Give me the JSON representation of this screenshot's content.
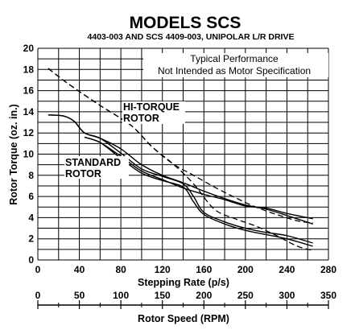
{
  "chart_data": {
    "type": "line",
    "title": "MODELS SCS",
    "subtitle": "4403-003 AND SCS 4409-003, UNIPOLAR L/R DRIVE",
    "xlabel": "Stepping Rate (p/s)",
    "ylabel": "Rotor Torque (oz. in.)",
    "x2label": "Rotor Speed (RPM)",
    "xlim": [
      0,
      280
    ],
    "ylim": [
      0,
      20
    ],
    "x2lim": [
      0,
      350
    ],
    "xticks": [
      "0",
      "40",
      "80",
      "120",
      "160",
      "200",
      "240",
      "280"
    ],
    "yticks": [
      "0",
      "2",
      "4",
      "6",
      "8",
      "10",
      "12",
      "14",
      "16",
      "18",
      "20"
    ],
    "x2ticks": [
      "0",
      "50",
      "100",
      "150",
      "200",
      "250",
      "300",
      "350"
    ],
    "grid": true,
    "annotations": {
      "note_line1": "Typical Performance",
      "note_line2": "Not Intended as Motor Specification",
      "hi_torque_line1": "HI-TORQUE",
      "hi_torque_line2": "ROTOR",
      "standard_line1": "STANDARD",
      "standard_line2": "ROTOR"
    },
    "series": [
      {
        "name": "Hi-Torque Rotor",
        "style": "dashed",
        "pairs": [
          {
            "x": [
              10,
              30,
              60,
              90,
              110,
              130,
              150,
              170,
              190,
              210,
              230,
              250,
              265
            ],
            "y": [
              18.1,
              16.6,
              14.6,
              12.7,
              10.7,
              9.1,
              8.0,
              6.9,
              5.9,
              5.0,
              4.3,
              3.7,
              3.5
            ]
          },
          {
            "x": [
              10,
              30,
              60,
              90,
              110,
              130,
              150,
              170,
              190,
              210,
              230,
              250,
              265
            ],
            "y": [
              18.1,
              16.6,
              14.6,
              12.7,
              10.7,
              9.1,
              7.2,
              4.8,
              3.9,
              3.2,
              2.3,
              1.3,
              0.9
            ]
          }
        ]
      },
      {
        "name": "Standard Rotor",
        "style": "solid",
        "pairs": [
          {
            "x": [
              10,
              25,
              35,
              45,
              60,
              80,
              100,
              120,
              140,
              160,
              180,
              200,
              220,
              240,
              265
            ],
            "y": [
              13.7,
              13.6,
              13.1,
              12.0,
              11.5,
              10.5,
              9.0,
              8.0,
              7.3,
              6.5,
              5.8,
              5.2,
              4.8,
              4.2,
              3.4
            ]
          },
          {
            "x": [
              10,
              25,
              35,
              45,
              60,
              80,
              100,
              120,
              140,
              150,
              160,
              180,
              200,
              220,
              240,
              265
            ],
            "y": [
              13.7,
              13.6,
              13.1,
              12.0,
              11.5,
              10.1,
              8.6,
              7.9,
              7.2,
              6.0,
              4.5,
              3.6,
              3.0,
              2.6,
              2.3,
              1.6
            ]
          },
          {
            "x": [
              45,
              60,
              80,
              100,
              120,
              140,
              160,
              180,
              200,
              220,
              240,
              265
            ],
            "y": [
              11.6,
              11.1,
              9.8,
              8.4,
              7.6,
              6.8,
              6.2,
              5.7,
              5.1,
              4.9,
              4.4,
              3.9
            ]
          },
          {
            "x": [
              45,
              60,
              80,
              100,
              120,
              140,
              150,
              160,
              180,
              200,
              220,
              240,
              265
            ],
            "y": [
              11.6,
              11.1,
              9.6,
              8.2,
              7.5,
              6.9,
              5.5,
              4.3,
              3.4,
              2.8,
              2.4,
              2.0,
              1.3
            ]
          }
        ]
      }
    ]
  }
}
